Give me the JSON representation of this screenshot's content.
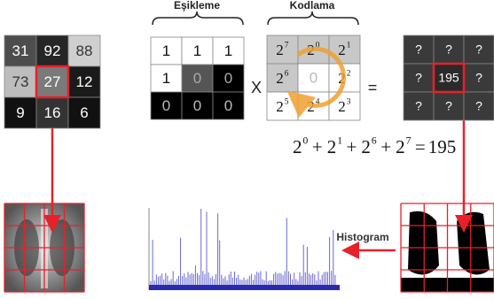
{
  "labels": {
    "thresholding": "Eşikleme",
    "coding": "Kodlama",
    "histogram": "Histogram"
  },
  "input_grid": [
    [
      31,
      92,
      88
    ],
    [
      73,
      27,
      12
    ],
    [
      9,
      16,
      6
    ]
  ],
  "threshold_grid": [
    [
      1,
      1,
      1
    ],
    [
      1,
      0,
      0
    ],
    [
      0,
      0,
      0
    ]
  ],
  "coding_grid": [
    [
      {
        "base": 2,
        "exp": 7
      },
      {
        "base": 2,
        "exp": 0
      },
      {
        "base": 2,
        "exp": 1
      }
    ],
    [
      {
        "base": 2,
        "exp": 6
      },
      0,
      {
        "base": 2,
        "exp": 2
      }
    ],
    [
      {
        "base": 2,
        "exp": 5
      },
      {
        "base": 2,
        "exp": 4
      },
      {
        "base": 2,
        "exp": 3
      }
    ]
  ],
  "result_grid": [
    [
      "?",
      "?",
      "?"
    ],
    [
      "?",
      195,
      "?"
    ],
    [
      "?",
      "?",
      "?"
    ]
  ],
  "operators": {
    "times": "X",
    "equals": "="
  },
  "formula": {
    "terms": [
      {
        "base": 2,
        "exp": 0
      },
      {
        "base": 2,
        "exp": 1
      },
      {
        "base": 2,
        "exp": 6
      },
      {
        "base": 2,
        "exp": 7
      }
    ],
    "plus": "+",
    "equals": "=",
    "result": 195
  }
}
